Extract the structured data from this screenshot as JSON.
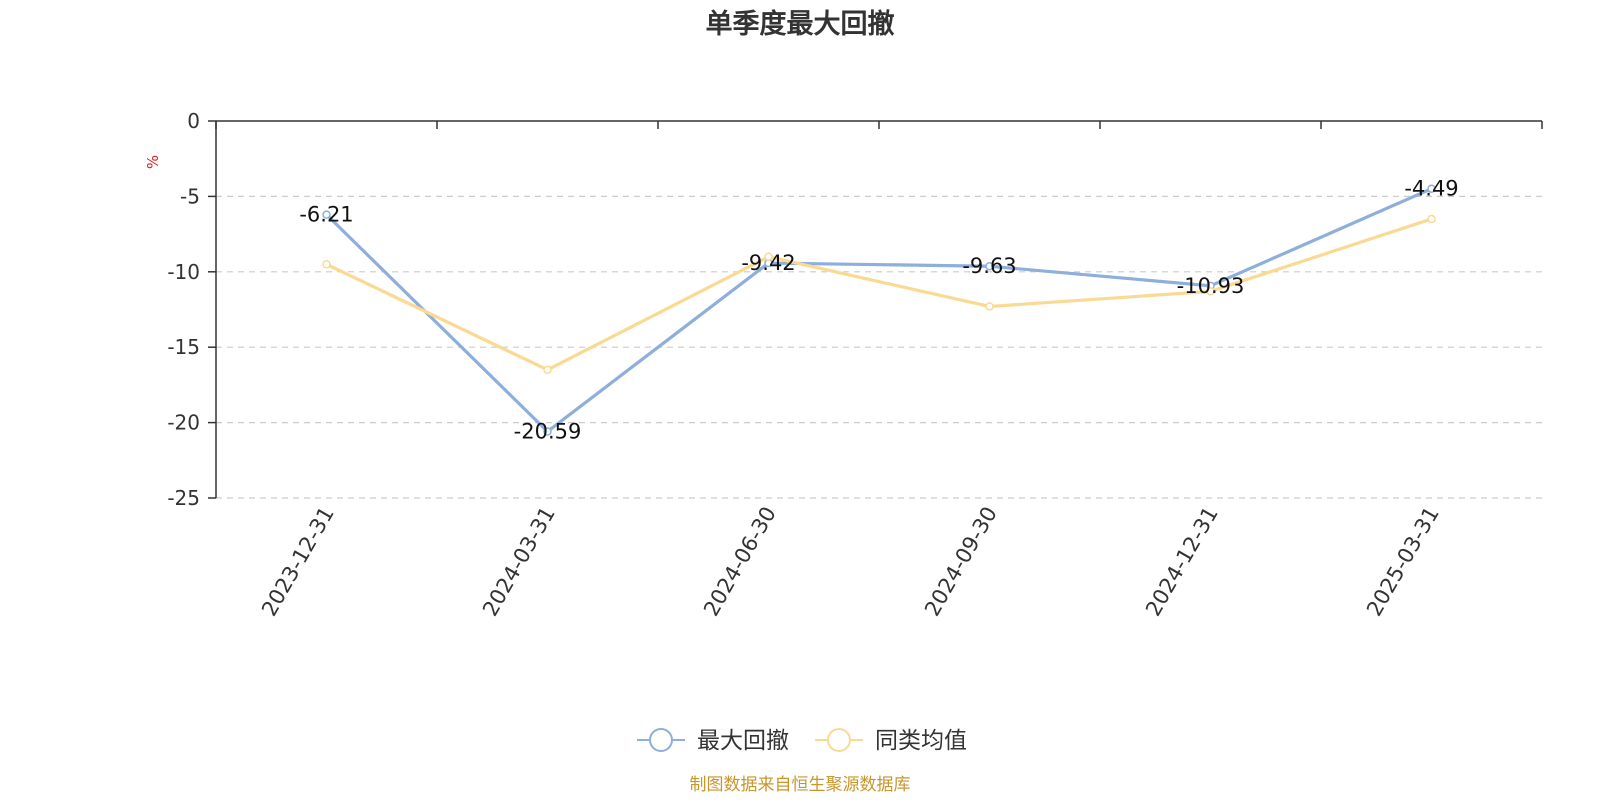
{
  "chart_data": {
    "type": "line",
    "title": "单季度最大回撤",
    "ylabel": "%",
    "xlabel": "",
    "categories": [
      "2023-12-31",
      "2024-03-31",
      "2024-06-30",
      "2024-09-30",
      "2024-12-31",
      "2025-03-31"
    ],
    "ylim": [
      -25,
      0
    ],
    "yticks": [
      0,
      -5,
      -10,
      -15,
      -20,
      -25
    ],
    "grid": true,
    "legend_position": "bottom-center",
    "series": [
      {
        "name": "最大回撤",
        "color": "#8eaedb",
        "values": [
          -6.21,
          -20.59,
          -9.42,
          -9.63,
          -10.93,
          -4.49
        ],
        "labels": [
          "-6.21",
          "-20.59",
          "-9.42",
          "-9.63",
          "-10.93",
          "-4.49"
        ],
        "show_labels": true
      },
      {
        "name": "同类均值",
        "color": "#fad993",
        "values": [
          -9.5,
          -16.5,
          -9.0,
          -12.3,
          -11.3,
          -6.5
        ],
        "show_labels": false
      }
    ]
  },
  "footer": {
    "source_text": "制图数据来自恒生聚源数据库",
    "source_color": "#c9962b"
  },
  "colors": {
    "ylabel_color": "#e02020",
    "axis_color": "#333333",
    "grid_color": "#cccccc"
  }
}
